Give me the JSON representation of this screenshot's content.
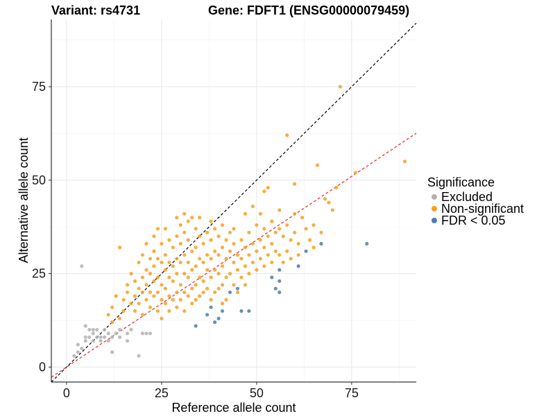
{
  "chart_data": {
    "type": "scatter",
    "title_left": "Variant: rs4731",
    "title_right": "Gene: FDFT1 (ENSG00000079459)",
    "xlabel": "Reference allele count",
    "ylabel": "Alternative allele count",
    "xlim": [
      -4,
      92
    ],
    "ylim": [
      -4,
      93
    ],
    "xticks": [
      0,
      25,
      50,
      75
    ],
    "yticks": [
      0,
      25,
      50,
      75
    ],
    "grid": true,
    "legend": {
      "title": "Significance",
      "placement": "right",
      "entries": [
        {
          "label": "Excluded",
          "color": "#b3b3b3"
        },
        {
          "label": "Non-significant",
          "color": "#f5a024"
        },
        {
          "label": "FDR < 0.05",
          "color": "#4e7ca6"
        }
      ]
    },
    "reference_lines": [
      {
        "name": "identity-line",
        "slope": 1.0,
        "intercept": 0,
        "color": "#000000",
        "dash": "dashed"
      },
      {
        "name": "fit-line",
        "slope": 0.68,
        "intercept": 0,
        "color": "#e8281e",
        "dash": "dashed"
      }
    ],
    "series": [
      {
        "name": "Excluded",
        "color": "#b3b3b3",
        "points": [
          [
            2,
            3
          ],
          [
            3,
            6
          ],
          [
            3,
            4
          ],
          [
            4,
            5
          ],
          [
            4,
            27
          ],
          [
            5,
            8
          ],
          [
            5,
            11
          ],
          [
            5,
            7
          ],
          [
            6,
            10
          ],
          [
            6,
            8
          ],
          [
            7,
            9
          ],
          [
            7,
            7
          ],
          [
            7,
            10
          ],
          [
            8,
            8
          ],
          [
            8,
            10
          ],
          [
            9,
            7
          ],
          [
            9,
            8
          ],
          [
            10,
            8
          ],
          [
            10,
            10
          ],
          [
            11,
            7
          ],
          [
            11,
            9
          ],
          [
            12,
            4
          ],
          [
            12,
            8
          ],
          [
            13,
            9
          ],
          [
            14,
            8
          ],
          [
            14,
            10
          ],
          [
            16,
            7
          ],
          [
            16,
            9
          ],
          [
            17,
            10
          ],
          [
            19,
            3
          ],
          [
            20,
            9
          ],
          [
            21,
            9
          ],
          [
            22,
            9
          ]
        ]
      },
      {
        "name": "Non-significant",
        "color": "#f5a024",
        "points": [
          [
            11,
            14
          ],
          [
            12,
            12
          ],
          [
            12,
            16
          ],
          [
            13,
            19
          ],
          [
            14,
            32
          ],
          [
            14,
            13
          ],
          [
            15,
            15
          ],
          [
            15,
            18
          ],
          [
            16,
            20
          ],
          [
            16,
            22
          ],
          [
            17,
            17
          ],
          [
            17,
            25
          ],
          [
            18,
            19
          ],
          [
            18,
            23
          ],
          [
            18,
            15
          ],
          [
            19,
            28
          ],
          [
            19,
            21
          ],
          [
            19,
            17
          ],
          [
            20,
            24
          ],
          [
            20,
            20
          ],
          [
            20,
            14
          ],
          [
            20,
            30
          ],
          [
            21,
            26
          ],
          [
            21,
            22
          ],
          [
            21,
            18
          ],
          [
            21,
            33
          ],
          [
            22,
            29
          ],
          [
            22,
            25
          ],
          [
            22,
            20
          ],
          [
            22,
            16
          ],
          [
            23,
            35
          ],
          [
            23,
            31
          ],
          [
            23,
            27
          ],
          [
            23,
            23
          ],
          [
            23,
            19
          ],
          [
            24,
            37
          ],
          [
            24,
            29
          ],
          [
            24,
            24
          ],
          [
            24,
            20
          ],
          [
            24,
            15
          ],
          [
            25,
            33
          ],
          [
            25,
            28
          ],
          [
            25,
            22
          ],
          [
            25,
            18
          ],
          [
            25,
            13
          ],
          [
            26,
            37
          ],
          [
            26,
            30
          ],
          [
            26,
            26
          ],
          [
            26,
            21
          ],
          [
            26,
            17
          ],
          [
            27,
            34
          ],
          [
            27,
            28
          ],
          [
            27,
            24
          ],
          [
            27,
            19
          ],
          [
            27,
            15
          ],
          [
            28,
            32
          ],
          [
            28,
            27
          ],
          [
            28,
            23
          ],
          [
            28,
            18
          ],
          [
            29,
            40
          ],
          [
            29,
            35
          ],
          [
            29,
            29
          ],
          [
            29,
            25
          ],
          [
            29,
            20
          ],
          [
            29,
            16
          ],
          [
            30,
            38
          ],
          [
            30,
            33
          ],
          [
            30,
            28
          ],
          [
            30,
            22
          ],
          [
            30,
            18
          ],
          [
            31,
            41
          ],
          [
            31,
            36
          ],
          [
            31,
            30
          ],
          [
            31,
            25
          ],
          [
            31,
            20
          ],
          [
            31,
            15
          ],
          [
            32,
            39
          ],
          [
            32,
            34
          ],
          [
            32,
            28
          ],
          [
            32,
            24
          ],
          [
            32,
            19
          ],
          [
            33,
            40
          ],
          [
            33,
            31
          ],
          [
            33,
            26
          ],
          [
            33,
            21
          ],
          [
            33,
            17
          ],
          [
            34,
            37
          ],
          [
            34,
            32
          ],
          [
            34,
            27
          ],
          [
            34,
            22
          ],
          [
            34,
            18
          ],
          [
            35,
            40
          ],
          [
            35,
            35
          ],
          [
            35,
            29
          ],
          [
            35,
            24
          ],
          [
            35,
            19
          ],
          [
            36,
            33
          ],
          [
            36,
            28
          ],
          [
            36,
            23
          ],
          [
            36,
            20
          ],
          [
            37,
            36
          ],
          [
            37,
            30
          ],
          [
            37,
            26
          ],
          [
            37,
            21
          ],
          [
            38,
            39
          ],
          [
            38,
            34
          ],
          [
            38,
            29
          ],
          [
            38,
            24
          ],
          [
            38,
            18
          ],
          [
            39,
            37
          ],
          [
            39,
            31
          ],
          [
            39,
            26
          ],
          [
            39,
            20
          ],
          [
            40,
            35
          ],
          [
            40,
            30
          ],
          [
            40,
            25
          ],
          [
            40,
            21
          ],
          [
            41,
            38
          ],
          [
            41,
            32
          ],
          [
            41,
            27
          ],
          [
            41,
            22
          ],
          [
            41,
            17
          ],
          [
            42,
            34
          ],
          [
            42,
            29
          ],
          [
            42,
            24
          ],
          [
            42,
            18
          ],
          [
            43,
            36
          ],
          [
            43,
            31
          ],
          [
            43,
            25
          ],
          [
            44,
            37
          ],
          [
            44,
            33
          ],
          [
            44,
            28
          ],
          [
            44,
            22
          ],
          [
            45,
            30
          ],
          [
            45,
            26
          ],
          [
            45,
            20
          ],
          [
            46,
            34
          ],
          [
            46,
            29
          ],
          [
            46,
            24
          ],
          [
            47,
            41
          ],
          [
            47,
            32
          ],
          [
            47,
            27
          ],
          [
            47,
            22
          ],
          [
            48,
            36
          ],
          [
            48,
            30
          ],
          [
            48,
            25
          ],
          [
            49,
            43
          ],
          [
            49,
            33
          ],
          [
            49,
            28
          ],
          [
            50,
            38
          ],
          [
            50,
            31
          ],
          [
            50,
            26
          ],
          [
            51,
            41
          ],
          [
            51,
            34
          ],
          [
            51,
            29
          ],
          [
            52,
            47
          ],
          [
            52,
            37
          ],
          [
            52,
            32
          ],
          [
            52,
            27
          ],
          [
            53,
            48
          ],
          [
            53,
            35
          ],
          [
            53,
            30
          ],
          [
            54,
            39
          ],
          [
            54,
            33
          ],
          [
            54,
            28
          ],
          [
            55,
            36
          ],
          [
            55,
            31
          ],
          [
            56,
            42
          ],
          [
            56,
            37
          ],
          [
            56,
            30
          ],
          [
            57,
            35
          ],
          [
            57,
            28
          ],
          [
            58,
            38
          ],
          [
            58,
            31
          ],
          [
            59,
            34
          ],
          [
            59,
            29
          ],
          [
            60,
            49
          ],
          [
            60,
            41
          ],
          [
            60,
            36
          ],
          [
            61,
            33
          ],
          [
            61,
            30
          ],
          [
            62,
            40
          ],
          [
            63,
            37
          ],
          [
            64,
            34
          ],
          [
            65,
            38
          ],
          [
            66,
            54
          ],
          [
            67,
            36
          ],
          [
            68,
            45
          ],
          [
            69,
            44
          ],
          [
            70,
            42
          ],
          [
            71,
            48
          ],
          [
            72,
            75
          ],
          [
            76,
            52
          ],
          [
            58,
            62
          ],
          [
            89,
            55
          ],
          [
            65,
            32
          ]
        ]
      },
      {
        "name": "FDR < 0.05",
        "color": "#4e7ca6",
        "points": [
          [
            34,
            11
          ],
          [
            37,
            14
          ],
          [
            38,
            16
          ],
          [
            39,
            12
          ],
          [
            40,
            13
          ],
          [
            41,
            15
          ],
          [
            43,
            20
          ],
          [
            45,
            21
          ],
          [
            46,
            15
          ],
          [
            48,
            15
          ],
          [
            54,
            24
          ],
          [
            55,
            21
          ],
          [
            56,
            26
          ],
          [
            56,
            23
          ],
          [
            56,
            20
          ],
          [
            61,
            27
          ],
          [
            63,
            31
          ],
          [
            67,
            33
          ],
          [
            79,
            33
          ]
        ]
      }
    ]
  }
}
